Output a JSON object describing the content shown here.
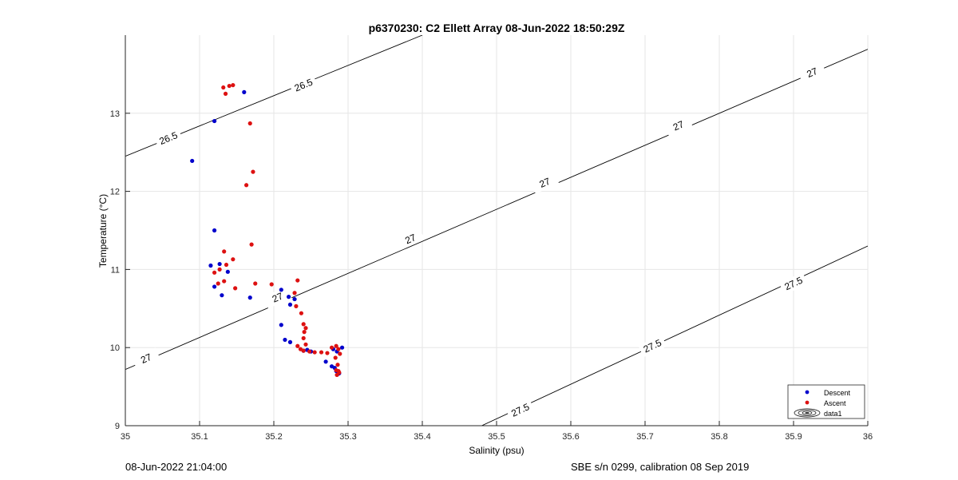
{
  "chart_data": {
    "type": "scatter",
    "title": "p6370230: C2 Ellett Array 08-Jun-2022 18:50:29Z",
    "xlabel": "Salinity (psu)",
    "ylabel": "Temperature (°C)",
    "xlim": [
      35,
      36
    ],
    "ylim": [
      9,
      14
    ],
    "xticks": [
      "35",
      "35.1",
      "35.2",
      "35.3",
      "35.4",
      "35.5",
      "35.6",
      "35.7",
      "35.8",
      "35.9",
      "36"
    ],
    "yticks": [
      "9",
      "10",
      "11",
      "12",
      "13"
    ],
    "grid": true,
    "legend": {
      "placement": "bottom-right",
      "entries": [
        "Descent",
        "Ascent",
        "data1"
      ]
    },
    "series": [
      {
        "name": "Descent",
        "color": "#0000cc",
        "x": [
          35.16,
          35.12,
          35.09,
          35.12,
          35.115,
          35.127,
          35.138,
          35.12,
          35.13,
          35.168,
          35.21,
          35.22,
          35.228,
          35.222,
          35.21,
          35.215,
          35.222,
          35.24,
          35.245,
          35.25,
          35.27,
          35.278,
          35.282,
          35.284,
          35.286,
          35.288,
          35.285,
          35.292,
          35.28
        ],
        "y": [
          13.27,
          12.9,
          12.39,
          11.5,
          11.05,
          11.07,
          10.97,
          10.78,
          10.67,
          10.64,
          10.74,
          10.65,
          10.62,
          10.55,
          10.29,
          10.1,
          10.07,
          9.96,
          9.97,
          9.95,
          9.82,
          9.76,
          9.74,
          9.7,
          9.66,
          9.67,
          9.95,
          10.0,
          9.98
        ]
      },
      {
        "name": "Ascent",
        "color": "#dd1111",
        "x": [
          35.132,
          35.135,
          35.14,
          35.145,
          35.168,
          35.172,
          35.163,
          35.17,
          35.133,
          35.145,
          35.136,
          35.12,
          35.125,
          35.133,
          35.127,
          35.148,
          35.175,
          35.197,
          35.232,
          35.228,
          35.23,
          35.237,
          35.24,
          35.243,
          35.241,
          35.24,
          35.243,
          35.232,
          35.236,
          35.24,
          35.248,
          35.255,
          35.264,
          35.272,
          35.278,
          35.284,
          35.287,
          35.289,
          35.283,
          35.286,
          35.284,
          35.288,
          35.285,
          35.287
        ],
        "y": [
          13.33,
          13.25,
          13.35,
          13.36,
          12.87,
          12.25,
          12.08,
          11.32,
          11.23,
          11.13,
          11.06,
          10.96,
          10.82,
          10.85,
          11.0,
          10.76,
          10.82,
          10.81,
          10.86,
          10.7,
          10.53,
          10.44,
          10.3,
          10.25,
          10.2,
          10.12,
          10.04,
          10.02,
          9.98,
          9.96,
          9.95,
          9.94,
          9.94,
          9.93,
          10.0,
          10.02,
          9.98,
          9.92,
          9.87,
          9.78,
          9.71,
          9.68,
          9.65,
          9.7
        ]
      }
    ],
    "contours": [
      {
        "level": "26.5",
        "labels": [
          "26.5",
          "26.5"
        ]
      },
      {
        "level": "27",
        "labels": [
          "27",
          "27",
          "27",
          "27",
          "27",
          "27"
        ]
      },
      {
        "level": "27.5",
        "labels": [
          "27.5",
          "27.5",
          "27.5"
        ]
      }
    ]
  },
  "footer": {
    "left": "08-Jun-2022 21:04:00",
    "right": "SBE s/n 0299, calibration 08 Sep 2019"
  }
}
